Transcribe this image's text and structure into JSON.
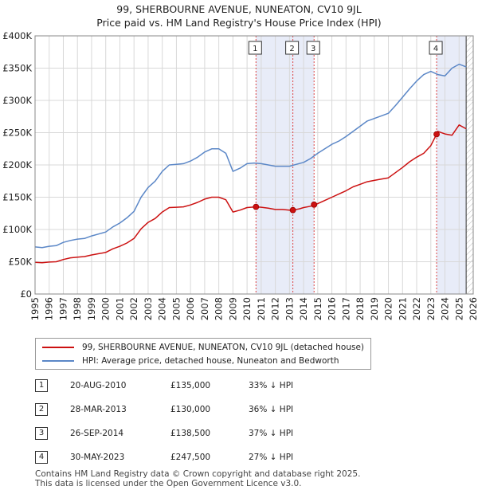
{
  "title_line1": "99, SHERBOURNE AVENUE, NUNEATON, CV10 9JL",
  "title_line2": "Price paid vs. HM Land Registry's House Price Index (HPI)",
  "chart_data": {
    "type": "line",
    "title": "99, SHERBOURNE AVENUE, NUNEATON, CV10 9JL — Price paid vs. HM Land Registry's House Price Index (HPI)",
    "xlabel": "",
    "ylabel": "",
    "xlim": [
      1995,
      2026
    ],
    "ylim": [
      0,
      400000
    ],
    "x_ticks": [
      1995,
      1996,
      1997,
      1998,
      1999,
      2000,
      2001,
      2002,
      2003,
      2004,
      2005,
      2006,
      2007,
      2008,
      2009,
      2010,
      2011,
      2012,
      2013,
      2014,
      2015,
      2016,
      2017,
      2018,
      2019,
      2020,
      2021,
      2022,
      2023,
      2024,
      2025,
      2026
    ],
    "y_ticks": [
      0,
      50000,
      100000,
      150000,
      200000,
      250000,
      300000,
      350000,
      400000
    ],
    "y_tick_labels": [
      "£0",
      "£50K",
      "£100K",
      "£150K",
      "£200K",
      "£250K",
      "£300K",
      "£350K",
      "£400K"
    ],
    "series": [
      {
        "name": "HPI: Average price, detached house, Nuneaton and Bedworth",
        "color": "#5b87c7",
        "x": [
          1995,
          1995.5,
          1996,
          1996.5,
          1997,
          1997.5,
          1998,
          1998.5,
          1999,
          1999.5,
          2000,
          2000.5,
          2001,
          2001.5,
          2002,
          2002.5,
          2003,
          2003.5,
          2004,
          2004.5,
          2005,
          2005.5,
          2006,
          2006.5,
          2007,
          2007.5,
          2008,
          2008.5,
          2009,
          2009.5,
          2010,
          2010.5,
          2011,
          2011.5,
          2012,
          2012.5,
          2013,
          2013.5,
          2014,
          2014.5,
          2015,
          2015.5,
          2016,
          2016.5,
          2017,
          2017.5,
          2018,
          2018.5,
          2019,
          2019.5,
          2020,
          2020.5,
          2021,
          2021.5,
          2022,
          2022.5,
          2023,
          2023.5,
          2024,
          2024.5,
          2025,
          2025.5
        ],
        "y": [
          73000,
          72000,
          74000,
          75000,
          80000,
          83000,
          85000,
          86000,
          90000,
          93000,
          96000,
          104000,
          110000,
          118000,
          128000,
          150000,
          165000,
          175000,
          190000,
          200000,
          201000,
          202000,
          206000,
          212000,
          220000,
          225000,
          225000,
          218000,
          190000,
          195000,
          202000,
          203000,
          202000,
          200000,
          198000,
          198000,
          198000,
          201000,
          204000,
          210000,
          218000,
          225000,
          232000,
          237000,
          244000,
          252000,
          260000,
          268000,
          272000,
          276000,
          280000,
          292000,
          305000,
          318000,
          330000,
          340000,
          345000,
          340000,
          338000,
          350000,
          356000,
          352000
        ]
      },
      {
        "name": "99, SHERBOURNE AVENUE, NUNEATON, CV10 9JL (detached house)",
        "color": "#cc1111",
        "x": [
          1995,
          1995.5,
          1996,
          1996.5,
          1997,
          1997.5,
          1998,
          1998.5,
          1999,
          1999.5,
          2000,
          2000.5,
          2001,
          2001.5,
          2002,
          2002.5,
          2003,
          2003.5,
          2004,
          2004.5,
          2005,
          2005.5,
          2006,
          2006.5,
          2007,
          2007.5,
          2008,
          2008.5,
          2009,
          2009.5,
          2010,
          2010.63,
          2011,
          2011.5,
          2012,
          2012.5,
          2013,
          2013.24,
          2013.7,
          2014,
          2014.5,
          2014.74,
          2015,
          2015.5,
          2016,
          2016.5,
          2017,
          2017.5,
          2018,
          2018.5,
          2019,
          2019.5,
          2020,
          2020.5,
          2021,
          2021.5,
          2022,
          2022.5,
          2023,
          2023.41,
          2023.5,
          2024,
          2024.5,
          2025,
          2025.5
        ],
        "y": [
          49000,
          48500,
          49500,
          50000,
          53500,
          56000,
          57000,
          58000,
          60500,
          62500,
          64500,
          70000,
          74000,
          79000,
          86000,
          101000,
          111000,
          117000,
          127000,
          134000,
          134500,
          135000,
          138000,
          142000,
          147000,
          150000,
          150000,
          146000,
          127000,
          130000,
          134000,
          135000,
          134500,
          133000,
          131000,
          131000,
          130000,
          130000,
          132000,
          134000,
          136000,
          138500,
          140000,
          145000,
          150000,
          155000,
          160000,
          166000,
          170000,
          174000,
          176000,
          178000,
          180000,
          188000,
          196000,
          205000,
          212000,
          218000,
          230000,
          247500,
          252000,
          248000,
          246000,
          262000,
          256000
        ]
      }
    ],
    "transactions": [
      {
        "label": "1",
        "x": 2010.63,
        "date": "20-AUG-2010",
        "price": 135000,
        "price_label": "£135,000",
        "hpi_delta": "33% ↓ HPI"
      },
      {
        "label": "2",
        "x": 2013.24,
        "date": "28-MAR-2013",
        "price": 130000,
        "price_label": "£130,000",
        "hpi_delta": "36% ↓ HPI"
      },
      {
        "label": "3",
        "x": 2014.74,
        "date": "26-SEP-2014",
        "price": 138500,
        "price_label": "£138,500",
        "hpi_delta": "37% ↓ HPI"
      },
      {
        "label": "4",
        "x": 2023.41,
        "date": "30-MAY-2023",
        "price": 247500,
        "price_label": "£247,500",
        "hpi_delta": "27% ↓ HPI"
      }
    ],
    "forecast_from": 2025.5,
    "legend_position": "bottom-left below chart"
  },
  "legend": {
    "property_label": "99, SHERBOURNE AVENUE, NUNEATON, CV10 9JL (detached house)",
    "hpi_label": "HPI: Average price, detached house, Nuneaton and Bedworth"
  },
  "footer": {
    "line1": "Contains HM Land Registry data © Crown copyright and database right 2025.",
    "line2": "This data is licensed under the Open Government Licence v3.0."
  },
  "colors": {
    "property": "#cc1111",
    "hpi": "#5b87c7",
    "shade": "#e8ecf8",
    "grid": "#d8d8d8"
  }
}
